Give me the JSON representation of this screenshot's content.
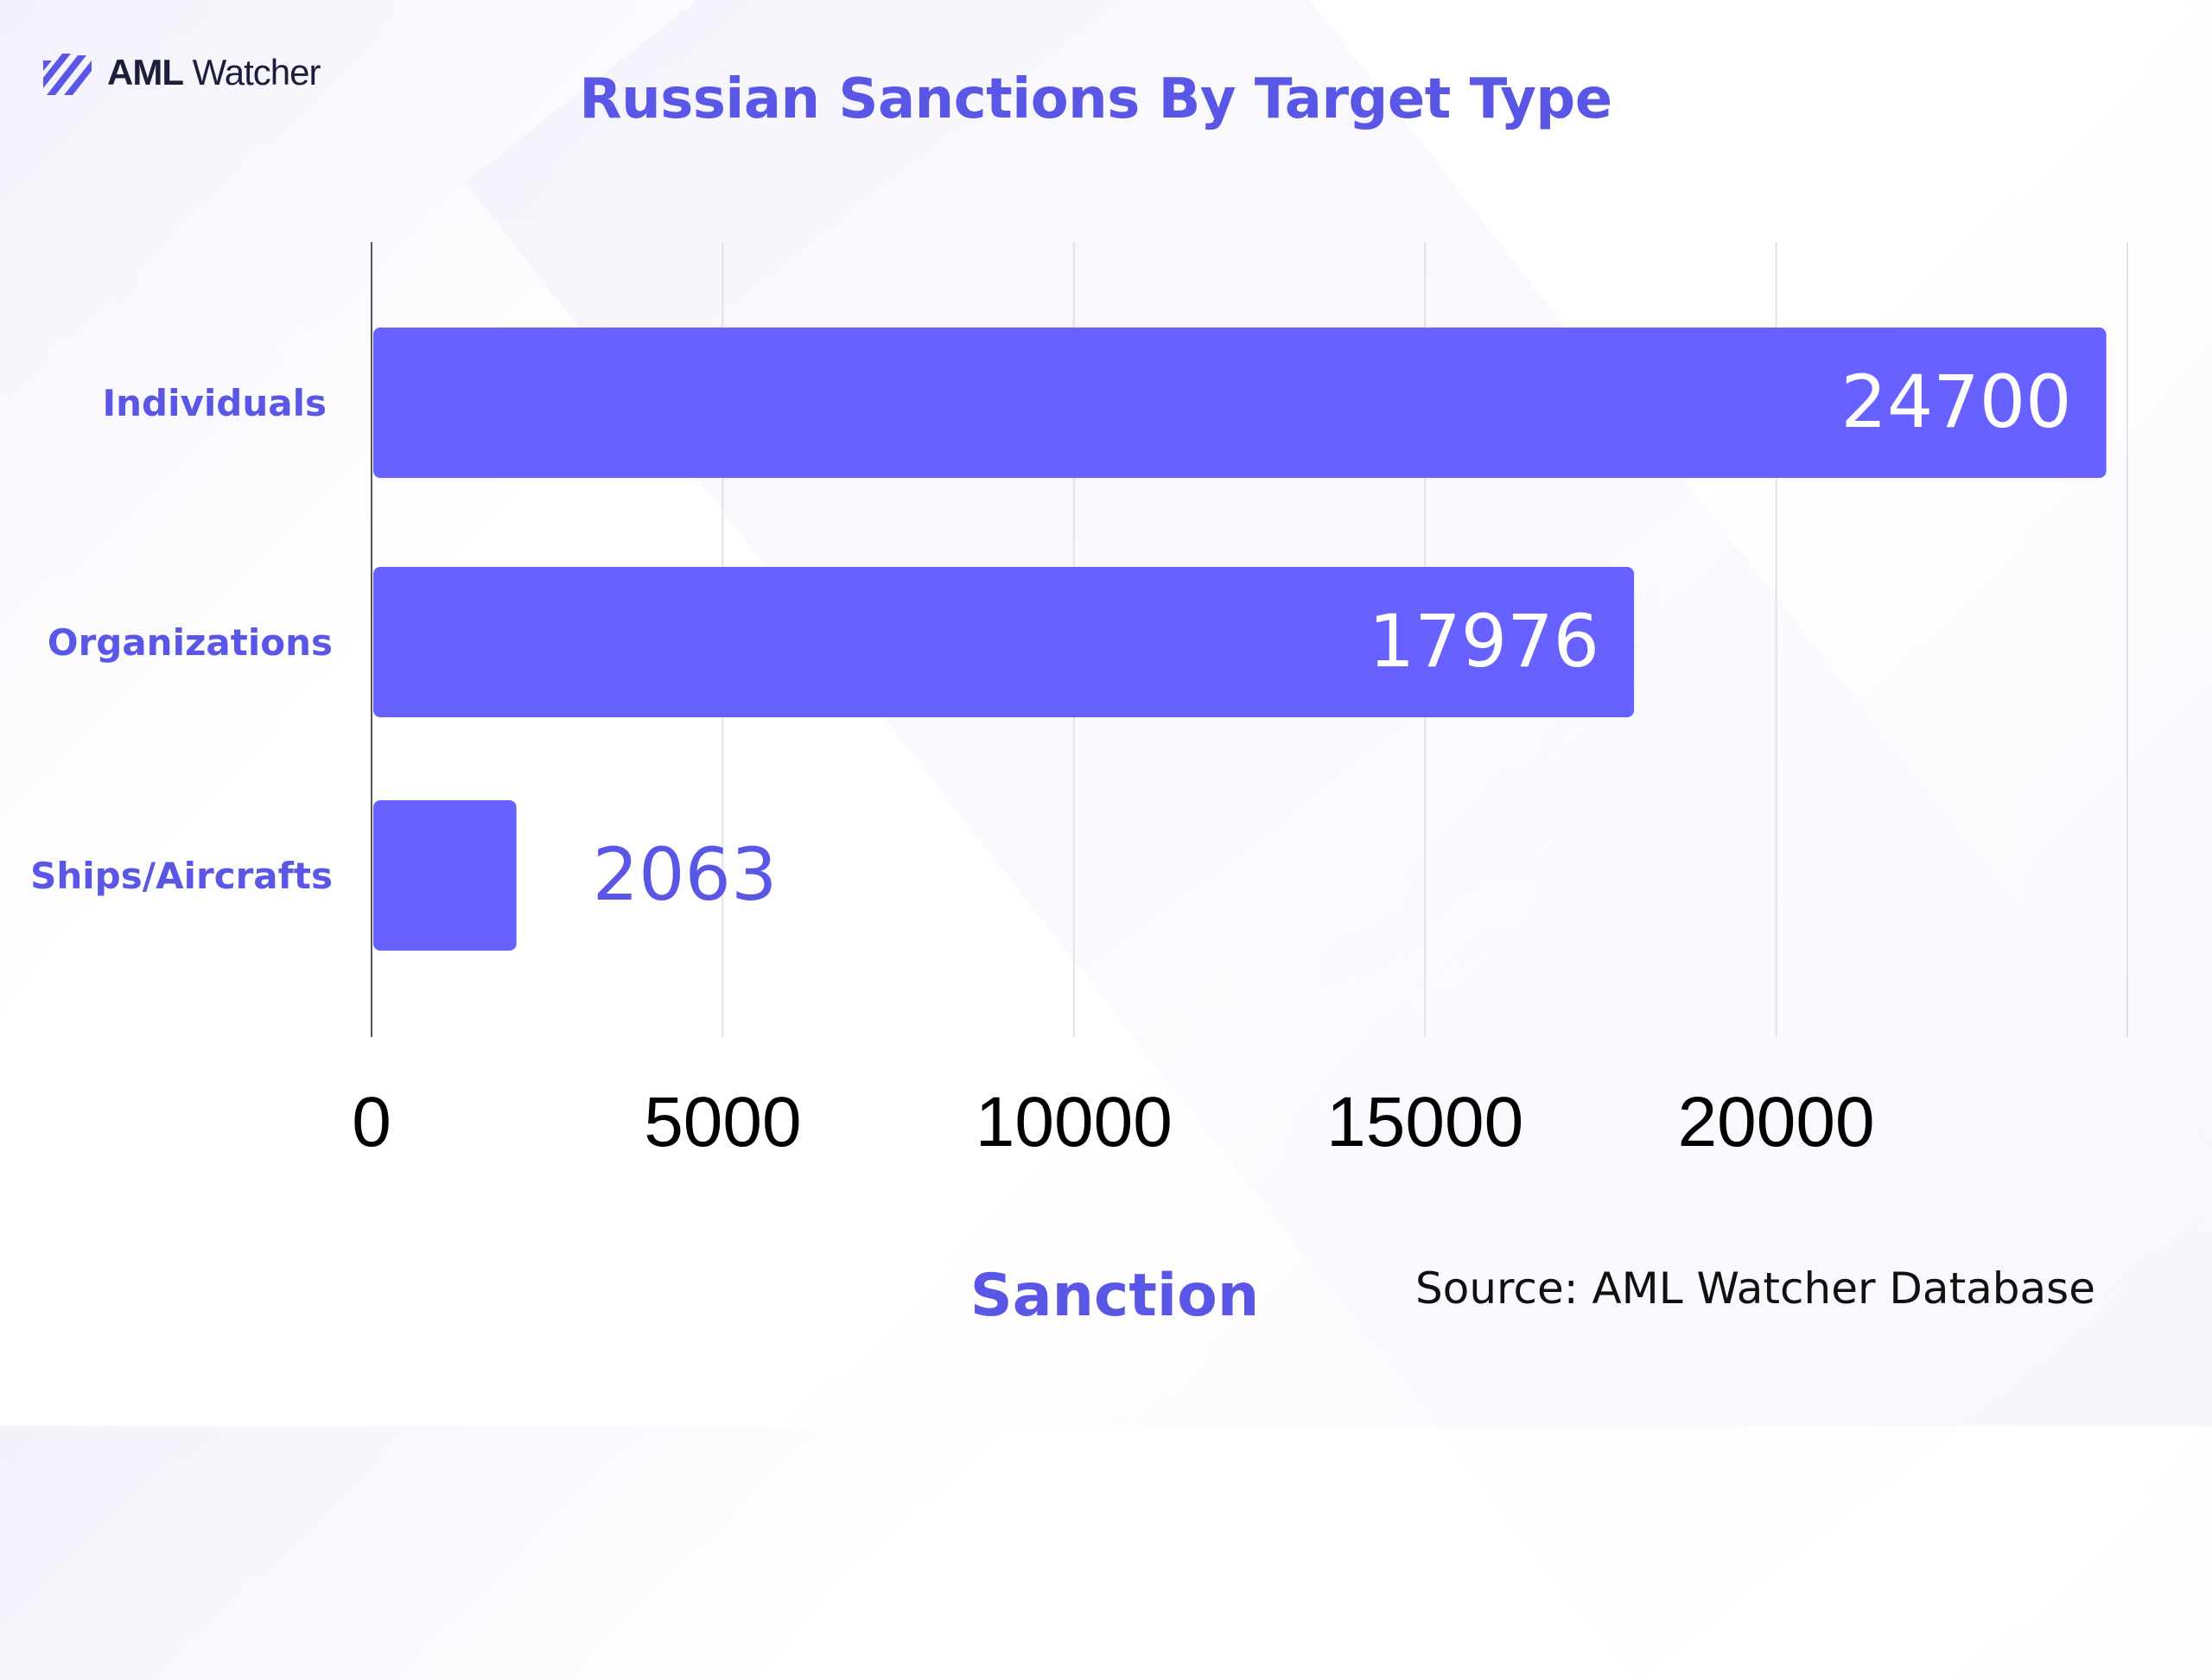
{
  "brand": {
    "name_bold": "AML",
    "name_regular": "Watcher",
    "icon": "aml-watcher-logo-icon",
    "color": "#5b57e6"
  },
  "colors": {
    "accent": "#5b57e6",
    "bar": "#6661ff",
    "grid": "#e2e2e8",
    "axis": "#555555",
    "tick_text": "#000000",
    "inner_label": "#ffffff"
  },
  "source": "Source: AML Watcher Database",
  "chart_data": {
    "type": "bar",
    "orientation": "horizontal",
    "title": "Russian Sanctions By Target Type",
    "xlabel": "Sanction",
    "ylabel": "",
    "categories": [
      "Individuals",
      "Organizations",
      "Ships/Aircrafts"
    ],
    "values": [
      24700,
      17976,
      2063
    ],
    "data_labels": [
      "24700",
      "17976",
      "2063"
    ],
    "xlim": [
      0,
      25000
    ],
    "xticks": [
      0,
      5000,
      10000,
      15000,
      20000
    ],
    "xtick_labels": [
      "0",
      "5000",
      "10000",
      "15000",
      "20000"
    ],
    "grid": true,
    "legend": "none"
  }
}
